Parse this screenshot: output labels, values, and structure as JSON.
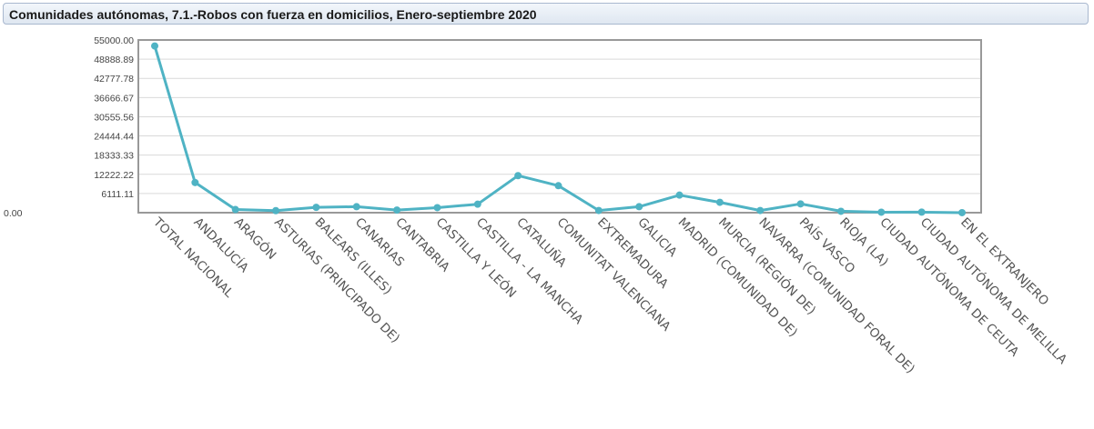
{
  "header": {
    "title": "Comunidades autónomas, 7.1.-Robos con fuerza en domicilios, Enero-septiembre 2020"
  },
  "colors": {
    "line": "#4fb3c4",
    "grid": "#d9d9d9",
    "frame": "#999999"
  },
  "chart_data": {
    "type": "line",
    "title": "Comunidades autónomas, 7.1.-Robos con fuerza en domicilios, Enero-septiembre 2020",
    "xlabel": "",
    "ylabel": "",
    "ylim": [
      0,
      55000
    ],
    "grid": true,
    "legend": "none",
    "y_ticks": [
      "0.00",
      "6111.11",
      "12222.22",
      "18333.33",
      "24444.44",
      "30555.56",
      "36666.67",
      "42777.78",
      "48888.89",
      "55000.00"
    ],
    "categories": [
      "TOTAL NACIONAL",
      "ANDALUCÍA",
      "ARAGÓN",
      "ASTURIAS (PRINCIPADO DE)",
      "BALEARS (ILLES)",
      "CANARIAS",
      "CANTABRIA",
      "CASTILLA Y LEÓN",
      "CASTILLA - LA MANCHA",
      "CATALUÑA",
      "COMUNITAT VALENCIANA",
      "EXTREMADURA",
      "GALICIA",
      "MADRID (COMUNIDAD DE)",
      "MURCIA (REGIÓN DE)",
      "NAVARRA (COMUNIDAD FORAL DE)",
      "PAÍS VASCO",
      "RIOJA (LA)",
      "CIUDAD AUTÓNOMA DE CEUTA",
      "CIUDAD AUTÓNOMA DE MELILLA",
      "EN EL EXTRANJERO"
    ],
    "series": [
      {
        "values": [
          53100,
          9600,
          1000,
          650,
          1700,
          1900,
          850,
          1600,
          2700,
          11800,
          8600,
          700,
          1900,
          5600,
          3300,
          700,
          2800,
          450,
          150,
          180,
          10
        ]
      }
    ]
  }
}
